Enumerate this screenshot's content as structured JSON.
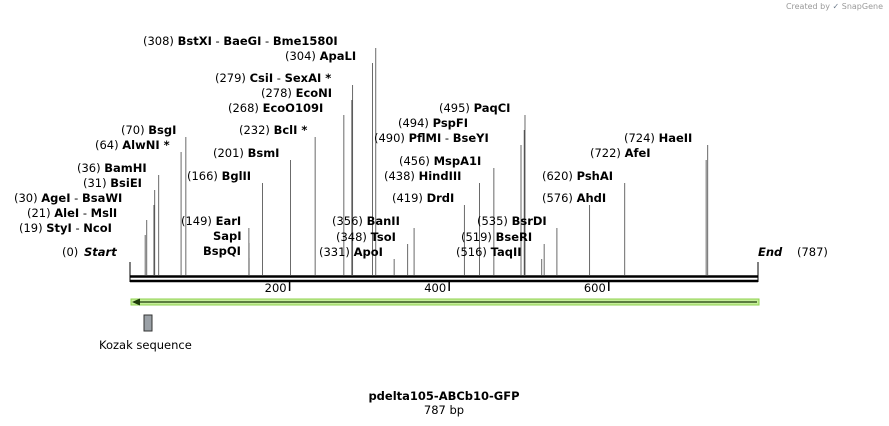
{
  "credit": {
    "prefix": "Created by",
    "logo_text": "SnapGene"
  },
  "title": "pdelta105-ABCb10-GFP",
  "length_label": "787 bp",
  "start_label": "Start",
  "start_pos": "(0)",
  "end_label": "End",
  "end_pos": "(787)",
  "total_bp": 787,
  "ticks": [
    {
      "bp": 200,
      "label": "200"
    },
    {
      "bp": 400,
      "label": "400"
    },
    {
      "bp": 600,
      "label": "600"
    }
  ],
  "feature": {
    "name": "Kozak sequence"
  },
  "orf": {
    "direction": "reverse",
    "color": "#8fd14f"
  },
  "sites": [
    {
      "pos": "(19)",
      "names": [
        "StyI",
        "NcoI"
      ],
      "bp": 19
    },
    {
      "pos": "(21)",
      "names": [
        "AleI",
        "MslI"
      ],
      "bp": 21
    },
    {
      "pos": "(30)",
      "names": [
        "AgeI",
        "BsaWI"
      ],
      "bp": 30
    },
    {
      "pos": "(31)",
      "names": [
        "BsiEI"
      ],
      "bp": 31
    },
    {
      "pos": "(36)",
      "names": [
        "BamHI"
      ],
      "bp": 36
    },
    {
      "pos": "(64)",
      "names": [
        "AlwNI *"
      ],
      "bp": 64
    },
    {
      "pos": "(70)",
      "names": [
        "BsgI"
      ],
      "bp": 70
    },
    {
      "pos": "(149)",
      "names": [
        "EarI"
      ],
      "bp": 149
    },
    {
      "pos": "",
      "names": [
        "SapI"
      ],
      "bp": 149
    },
    {
      "pos": "",
      "names": [
        "BspQI"
      ],
      "bp": 149
    },
    {
      "pos": "(166)",
      "names": [
        "BglII"
      ],
      "bp": 166
    },
    {
      "pos": "(201)",
      "names": [
        "BsmI"
      ],
      "bp": 201
    },
    {
      "pos": "(232)",
      "names": [
        "BclI *"
      ],
      "bp": 232
    },
    {
      "pos": "(268)",
      "names": [
        "EcoO109I"
      ],
      "bp": 268
    },
    {
      "pos": "(278)",
      "names": [
        "EcoNI"
      ],
      "bp": 278
    },
    {
      "pos": "(279)",
      "names": [
        "CsiI",
        "SexAI *"
      ],
      "bp": 279
    },
    {
      "pos": "(304)",
      "names": [
        "ApaLI"
      ],
      "bp": 304
    },
    {
      "pos": "(308)",
      "names": [
        "BstXI",
        "BaeGI",
        "Bme1580I"
      ],
      "bp": 308
    },
    {
      "pos": "(331)",
      "names": [
        "ApoI"
      ],
      "bp": 331
    },
    {
      "pos": "(348)",
      "names": [
        "TsoI"
      ],
      "bp": 348
    },
    {
      "pos": "(356)",
      "names": [
        "BanII"
      ],
      "bp": 356
    },
    {
      "pos": "(419)",
      "names": [
        "DrdI"
      ],
      "bp": 419
    },
    {
      "pos": "(438)",
      "names": [
        "HindIII"
      ],
      "bp": 438
    },
    {
      "pos": "(456)",
      "names": [
        "MspA1I"
      ],
      "bp": 456
    },
    {
      "pos": "(490)",
      "names": [
        "PflMI",
        "BseYI"
      ],
      "bp": 490
    },
    {
      "pos": "(494)",
      "names": [
        "PspFI"
      ],
      "bp": 494
    },
    {
      "pos": "(495)",
      "names": [
        "PaqCI"
      ],
      "bp": 495
    },
    {
      "pos": "(516)",
      "names": [
        "TaqII"
      ],
      "bp": 516
    },
    {
      "pos": "(519)",
      "names": [
        "BseRI"
      ],
      "bp": 519
    },
    {
      "pos": "(535)",
      "names": [
        "BsrDI"
      ],
      "bp": 535
    },
    {
      "pos": "(576)",
      "names": [
        "AhdI"
      ],
      "bp": 576
    },
    {
      "pos": "(620)",
      "names": [
        "PshAI"
      ],
      "bp": 620
    },
    {
      "pos": "(722)",
      "names": [
        "AfeI"
      ],
      "bp": 722
    },
    {
      "pos": "(724)",
      "names": [
        "HaeII"
      ],
      "bp": 724
    }
  ]
}
